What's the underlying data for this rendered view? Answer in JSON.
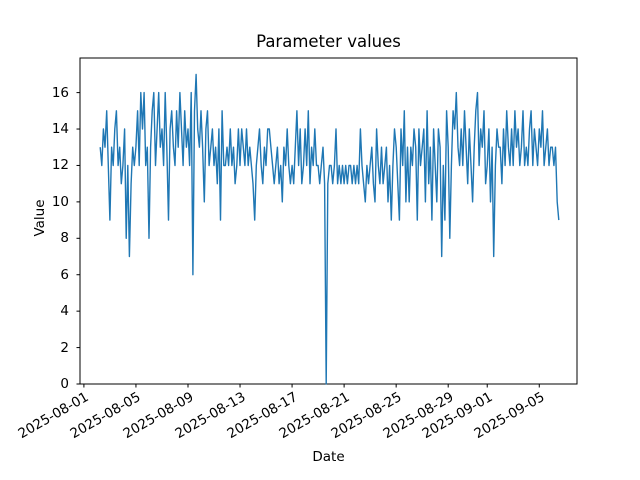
{
  "chart_data": {
    "type": "line",
    "title": "Parameter values",
    "xlabel": "Date",
    "ylabel": "Value",
    "line_color": "#1f77b4",
    "grid": false,
    "legend": "none",
    "x_axis": {
      "epoch": "2025-08-01",
      "unit": "days since epoch",
      "start": 1.25,
      "step": 0.125,
      "lim": [
        -0.3,
        37.9
      ],
      "ticks": [
        {
          "day": 0,
          "label": "2025-08-01"
        },
        {
          "day": 4,
          "label": "2025-08-05"
        },
        {
          "day": 8,
          "label": "2025-08-09"
        },
        {
          "day": 12,
          "label": "2025-08-13"
        },
        {
          "day": 16,
          "label": "2025-08-17"
        },
        {
          "day": 20,
          "label": "2025-08-21"
        },
        {
          "day": 24,
          "label": "2025-08-25"
        },
        {
          "day": 28,
          "label": "2025-08-29"
        },
        {
          "day": 31,
          "label": "2025-09-01"
        },
        {
          "day": 35,
          "label": "2025-09-05"
        }
      ]
    },
    "y_axis": {
      "lim": [
        0,
        17.9
      ],
      "ticks": [
        0,
        2,
        4,
        6,
        8,
        10,
        12,
        14,
        16
      ]
    },
    "values": [
      13,
      12,
      14,
      13,
      15,
      12,
      9,
      13,
      12,
      14,
      15,
      12,
      13,
      11,
      12,
      14,
      8,
      12,
      7,
      11,
      13,
      12,
      13,
      15,
      12,
      16,
      14,
      16,
      12,
      13,
      8,
      13,
      15,
      16,
      12,
      14,
      16,
      13,
      14,
      12,
      16,
      13,
      9,
      14,
      15,
      13,
      12,
      15,
      13,
      16,
      14,
      12,
      15,
      13,
      14,
      12,
      16,
      6,
      15,
      17,
      14,
      13,
      15,
      13,
      10,
      14,
      15,
      12,
      13,
      14,
      12,
      13,
      11,
      14,
      9,
      15,
      12,
      12,
      13,
      12,
      14,
      12,
      13,
      11,
      12,
      14,
      12,
      14,
      13,
      12,
      14,
      12,
      13,
      12,
      11,
      9,
      12,
      13,
      14,
      12,
      11,
      13,
      12,
      14,
      14,
      13,
      12,
      11,
      12,
      13,
      11,
      12,
      10,
      13,
      12,
      14,
      12,
      11,
      12,
      11,
      13,
      15,
      12,
      14,
      11,
      12,
      14,
      12,
      15,
      11,
      13,
      12,
      14,
      12,
      12,
      11,
      12,
      13,
      11,
      0,
      11,
      12,
      12,
      11,
      12,
      14,
      11,
      12,
      11,
      12,
      11,
      12,
      11,
      12,
      12,
      11,
      12,
      11,
      12,
      11,
      14,
      12,
      11,
      10,
      12,
      11,
      12,
      13,
      11,
      10,
      14,
      12,
      11,
      13,
      11,
      12,
      13,
      10,
      12,
      9,
      12,
      14,
      13,
      11,
      9,
      14,
      12,
      15,
      10,
      13,
      10,
      13,
      12,
      14,
      13,
      9,
      14,
      12,
      13,
      14,
      10,
      15,
      11,
      13,
      9,
      14,
      12,
      10,
      14,
      13,
      7,
      12,
      9,
      15,
      13,
      8,
      12,
      15,
      14,
      16,
      13,
      12,
      14,
      12,
      15,
      13,
      11,
      14,
      12,
      10,
      13,
      15,
      16,
      12,
      14,
      13,
      15,
      11,
      12,
      14,
      10,
      13,
      7,
      12,
      14,
      13,
      13,
      11,
      14,
      12,
      15,
      13,
      12,
      14,
      12,
      15,
      13,
      14,
      12,
      13,
      15,
      12,
      13,
      12,
      14,
      15,
      12,
      14,
      13,
      12,
      14,
      13,
      15,
      12,
      13,
      14,
      12,
      13,
      13,
      12,
      13,
      10,
      9
    ]
  }
}
